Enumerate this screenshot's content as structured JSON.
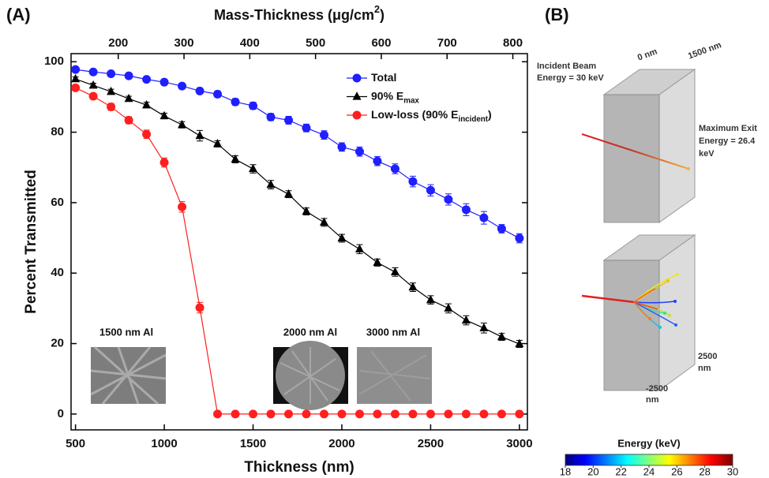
{
  "panels": [
    "(A)",
    "(B)"
  ],
  "chart_data": {
    "type": "line",
    "x_label": "Thickness (nm)",
    "y_label": "Percent Transmitted",
    "x2_label": [
      {
        "text": "Mass-Thickness (μg/cm"
      },
      {
        "text": "2",
        "sup": true
      },
      {
        "text": ")"
      }
    ],
    "x": [
      500,
      600,
      700,
      800,
      900,
      1000,
      1100,
      1200,
      1300,
      1400,
      1500,
      1600,
      1700,
      1800,
      1900,
      2000,
      2100,
      2200,
      2300,
      2400,
      2500,
      2600,
      2700,
      2800,
      2900,
      3000
    ],
    "series": [
      {
        "name": [
          {
            "text": "Total"
          }
        ],
        "color": "#1f1fff",
        "marker": "circle",
        "values": [
          97.8,
          97.1,
          96.6,
          96.0,
          95.0,
          94.2,
          93.1,
          91.7,
          90.8,
          88.6,
          87.5,
          84.3,
          83.4,
          81.2,
          79.2,
          75.8,
          74.5,
          71.8,
          69.6,
          66.0,
          63.5,
          60.9,
          58.0,
          55.7,
          52.6,
          49.9
        ],
        "errors": [
          0.5,
          0.6,
          0.6,
          0.6,
          0.7,
          0.7,
          0.8,
          0.8,
          0.9,
          0.9,
          1.0,
          1.0,
          1.1,
          1.1,
          1.2,
          1.2,
          1.3,
          1.3,
          1.4,
          1.5,
          1.6,
          1.6,
          1.7,
          1.8,
          1.2,
          1.3
        ]
      },
      {
        "name": [
          {
            "text": "90% E"
          },
          {
            "text": "max",
            "sub": true
          }
        ],
        "color": "#000000",
        "marker": "triangle",
        "values": [
          95.1,
          93.3,
          91.5,
          89.5,
          87.7,
          84.6,
          82.1,
          79.0,
          76.7,
          72.3,
          69.6,
          65.1,
          62.4,
          57.5,
          54.4,
          49.9,
          46.8,
          43.0,
          40.3,
          36.0,
          32.4,
          30.0,
          26.6,
          24.4,
          21.9,
          19.9
        ],
        "errors": [
          0.6,
          0.6,
          0.7,
          0.7,
          0.8,
          0.8,
          0.9,
          1.5,
          0.9,
          1.0,
          1.2,
          1.2,
          1.0,
          1.0,
          1.1,
          1.1,
          1.3,
          1.0,
          1.2,
          1.2,
          1.2,
          1.3,
          1.3,
          1.4,
          1.0,
          1.0
        ]
      },
      {
        "name": [
          {
            "text": "Low-loss (90% E"
          },
          {
            "text": "incident",
            "sub": true
          },
          {
            "text": ")"
          }
        ],
        "color": "#ff1f1f",
        "marker": "circle",
        "values": [
          92.6,
          90.2,
          87.2,
          83.4,
          79.4,
          71.4,
          58.8,
          30.2,
          0,
          0,
          0,
          0,
          0,
          0,
          0,
          0,
          0,
          0,
          0,
          0,
          0,
          0,
          0,
          0,
          0,
          0
        ],
        "errors": [
          0.8,
          0.8,
          1.0,
          1.0,
          1.2,
          1.3,
          1.5,
          1.5,
          0,
          0,
          0,
          0,
          0,
          0,
          0,
          0,
          0,
          0,
          0,
          0,
          0,
          0,
          0,
          0,
          0,
          0
        ]
      }
    ],
    "xlim": [
      475,
      3045
    ],
    "xticks": [
      500,
      1000,
      1500,
      2000,
      2500,
      3000
    ],
    "x2lim": [
      128.25,
      822.15
    ],
    "x2ticks": [
      200,
      300,
      400,
      500,
      600,
      700,
      800
    ],
    "ylim": [
      -4.5,
      102.3
    ],
    "yticks": [
      0,
      20,
      40,
      60,
      80,
      100
    ],
    "grid": false,
    "legend": "upper right",
    "annotations": [
      "1500 nm Al",
      "2000 nm Al",
      "3000 nm Al"
    ]
  },
  "diagram": {
    "beam_label": [
      "Incident Beam",
      "Energy = 30 keV"
    ],
    "depth_labels": [
      "0 nm",
      "1500 nm"
    ],
    "exit_label": [
      "Maximum Exit",
      "Energy = 26.4",
      "keV"
    ],
    "lateral_labels": [
      [
        "2500",
        "nm"
      ],
      [
        "-2500",
        "nm"
      ]
    ],
    "colorbar": {
      "label": "Energy (keV)",
      "lim": [
        18,
        30
      ],
      "ticks": [
        18,
        20,
        22,
        24,
        26,
        28,
        30
      ]
    }
  }
}
